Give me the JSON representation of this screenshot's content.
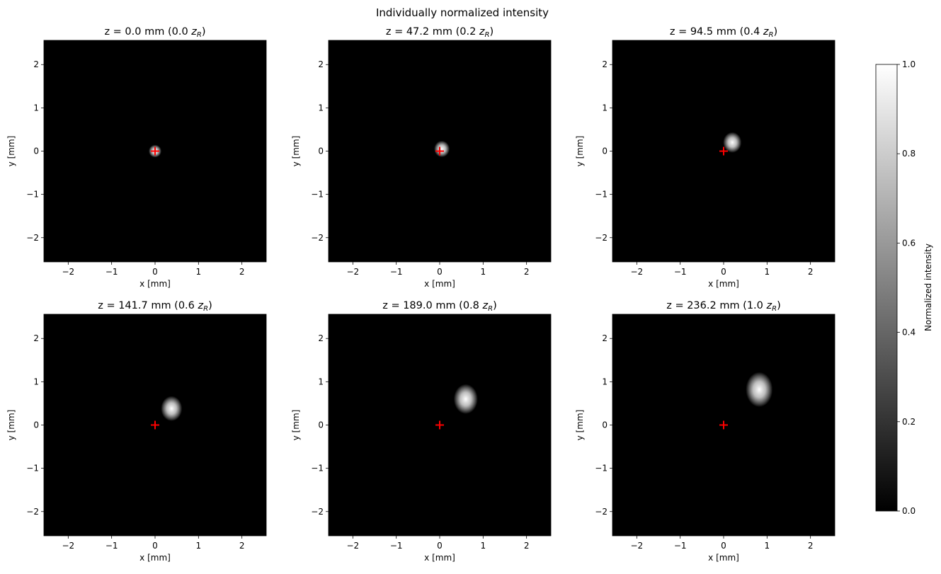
{
  "figure": {
    "suptitle": "Individually normalized intensity",
    "colorbar": {
      "label": "Normalized intensity",
      "range": [
        0.0,
        1.0
      ],
      "ticks": [
        "0.0",
        "0.2",
        "0.4",
        "0.6",
        "0.8",
        "1.0"
      ]
    }
  },
  "chart_data": [
    {
      "type": "heatmap",
      "title": "z = 0.0 mm (0.0 z_R)",
      "title_parts": {
        "z": "z = 0.0 mm (0.0 ",
        "zr": "z",
        "sub": "R",
        "close": ")"
      },
      "xlabel": "x [mm]",
      "ylabel": "y [mm]",
      "xlim": [
        -2.56,
        2.56
      ],
      "ylim": [
        -2.56,
        2.56
      ],
      "xticks": [
        "−2",
        "−1",
        "0",
        "1",
        "2"
      ],
      "yticks": [
        "−2",
        "−1",
        "0",
        "1",
        "2"
      ],
      "colormap": "gray",
      "peak": {
        "x": 0.0,
        "y": 0.0
      },
      "beam_center_marker": {
        "x": 0,
        "y": 0,
        "color": "#ff0000"
      }
    },
    {
      "type": "heatmap",
      "title": "z = 47.2 mm (0.2 z_R)",
      "title_parts": {
        "z": "z = 47.2 mm (0.2 ",
        "zr": "z",
        "sub": "R",
        "close": ")"
      },
      "xlabel": "x [mm]",
      "ylabel": "y [mm]",
      "xlim": [
        -2.56,
        2.56
      ],
      "ylim": [
        -2.56,
        2.56
      ],
      "xticks": [
        "−2",
        "−1",
        "0",
        "1",
        "2"
      ],
      "yticks": [
        "−2",
        "−1",
        "0",
        "1",
        "2"
      ],
      "colormap": "gray",
      "peak": {
        "x": 0.05,
        "y": 0.05
      },
      "beam_center_marker": {
        "x": 0,
        "y": 0,
        "color": "#ff0000"
      }
    },
    {
      "type": "heatmap",
      "title": "z = 94.5 mm (0.4 z_R)",
      "title_parts": {
        "z": "z = 94.5 mm (0.4 ",
        "zr": "z",
        "sub": "R",
        "close": ")"
      },
      "xlabel": "x [mm]",
      "ylabel": "y [mm]",
      "xlim": [
        -2.56,
        2.56
      ],
      "ylim": [
        -2.56,
        2.56
      ],
      "xticks": [
        "−2",
        "−1",
        "0",
        "1",
        "2"
      ],
      "yticks": [
        "−2",
        "−1",
        "0",
        "1",
        "2"
      ],
      "colormap": "gray",
      "peak": {
        "x": 0.2,
        "y": 0.2
      },
      "beam_center_marker": {
        "x": 0,
        "y": 0,
        "color": "#ff0000"
      }
    },
    {
      "type": "heatmap",
      "title": "z = 141.7 mm (0.6 z_R)",
      "title_parts": {
        "z": "z = 141.7 mm (0.6 ",
        "zr": "z",
        "sub": "R",
        "close": ")"
      },
      "xlabel": "x [mm]",
      "ylabel": "y [mm]",
      "xlim": [
        -2.56,
        2.56
      ],
      "ylim": [
        -2.56,
        2.56
      ],
      "xticks": [
        "−2",
        "−1",
        "0",
        "1",
        "2"
      ],
      "yticks": [
        "−2",
        "−1",
        "0",
        "1",
        "2"
      ],
      "colormap": "gray",
      "peak": {
        "x": 0.38,
        "y": 0.38
      },
      "beam_center_marker": {
        "x": 0,
        "y": 0,
        "color": "#ff0000"
      }
    },
    {
      "type": "heatmap",
      "title": "z = 189.0 mm (0.8 z_R)",
      "title_parts": {
        "z": "z = 189.0 mm (0.8 ",
        "zr": "z",
        "sub": "R",
        "close": ")"
      },
      "xlabel": "x [mm]",
      "ylabel": "y [mm]",
      "xlim": [
        -2.56,
        2.56
      ],
      "ylim": [
        -2.56,
        2.56
      ],
      "xticks": [
        "−2",
        "−1",
        "0",
        "1",
        "2"
      ],
      "yticks": [
        "−2",
        "−1",
        "0",
        "1",
        "2"
      ],
      "colormap": "gray",
      "peak": {
        "x": 0.6,
        "y": 0.6
      },
      "beam_center_marker": {
        "x": 0,
        "y": 0,
        "color": "#ff0000"
      }
    },
    {
      "type": "heatmap",
      "title": "z = 236.2 mm (1.0 z_R)",
      "title_parts": {
        "z": "z = 236.2 mm (1.0 ",
        "zr": "z",
        "sub": "R",
        "close": ")"
      },
      "xlabel": "x [mm]",
      "ylabel": "y [mm]",
      "xlim": [
        -2.56,
        2.56
      ],
      "ylim": [
        -2.56,
        2.56
      ],
      "xticks": [
        "−2",
        "−1",
        "0",
        "1",
        "2"
      ],
      "yticks": [
        "−2",
        "−1",
        "0",
        "1",
        "2"
      ],
      "colormap": "gray",
      "peak": {
        "x": 0.82,
        "y": 0.82
      },
      "beam_center_marker": {
        "x": 0,
        "y": 0,
        "color": "#ff0000"
      }
    }
  ]
}
